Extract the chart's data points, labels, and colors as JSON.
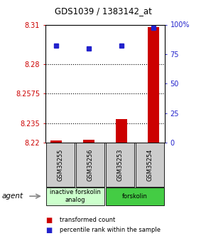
{
  "title": "GDS1039 / 1383142_at",
  "samples": [
    "GSM35255",
    "GSM35256",
    "GSM35253",
    "GSM35254"
  ],
  "bar_values": [
    8.2215,
    8.2225,
    8.238,
    8.308
  ],
  "dot_values": [
    82,
    80,
    82,
    97
  ],
  "ylim_left": [
    8.22,
    8.31
  ],
  "ylim_right": [
    0,
    100
  ],
  "yticks_left": [
    8.22,
    8.235,
    8.2575,
    8.28,
    8.31
  ],
  "yticks_right": [
    0,
    25,
    50,
    75,
    100
  ],
  "ytick_labels_left": [
    "8.22",
    "8.235",
    "8.2575",
    "8.28",
    "8.31"
  ],
  "ytick_labels_right": [
    "0",
    "25",
    "50",
    "75",
    "100%"
  ],
  "hlines": [
    8.235,
    8.2575,
    8.28
  ],
  "bar_color": "#cc0000",
  "dot_color": "#2222cc",
  "bar_base": 8.22,
  "groups": [
    {
      "label": "inactive forskolin\nanalog",
      "start": 0,
      "end": 2,
      "color": "#ccffcc"
    },
    {
      "label": "forskolin",
      "start": 2,
      "end": 4,
      "color": "#44cc44"
    }
  ],
  "legend_items": [
    {
      "color": "#cc0000",
      "label": "transformed count"
    },
    {
      "color": "#2222cc",
      "label": "percentile rank within the sample"
    }
  ],
  "agent_label": "agent",
  "background_color": "#ffffff",
  "plot_bg": "#ffffff",
  "tick_color_left": "#cc0000",
  "tick_color_right": "#2222cc",
  "bar_width": 0.35,
  "sample_area_color": "#cccccc"
}
